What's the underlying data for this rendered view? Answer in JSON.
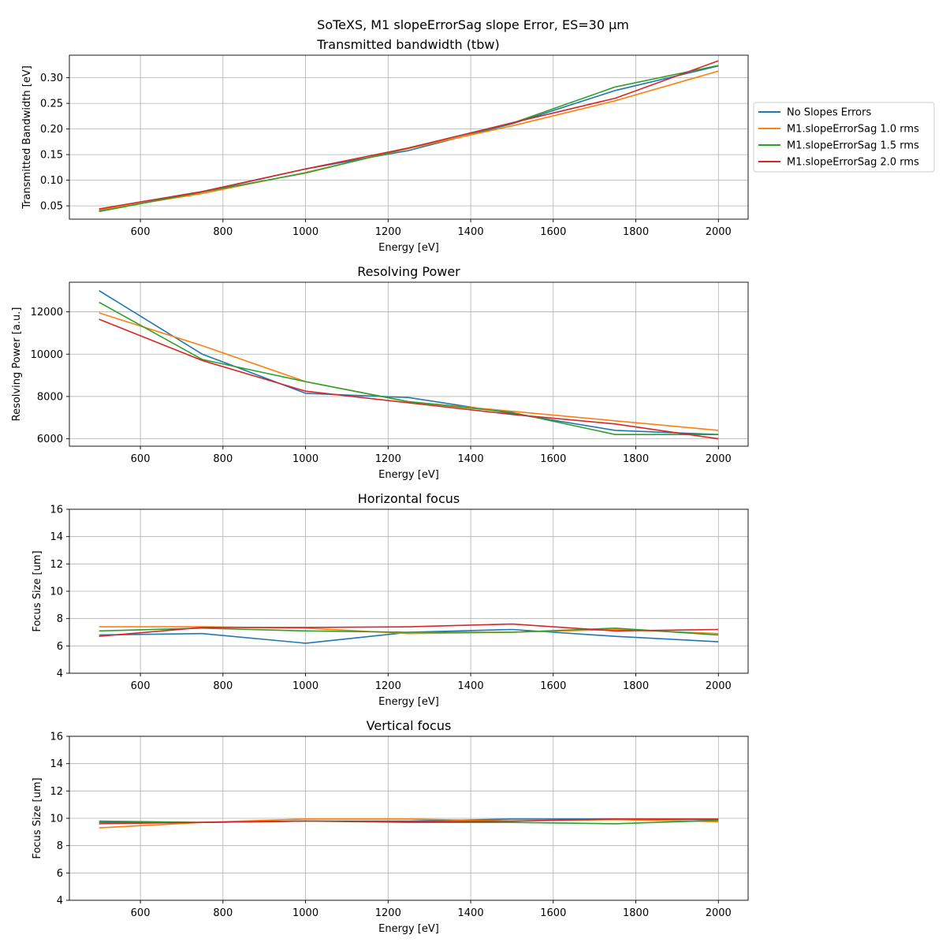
{
  "suptitle": "SoTeXS, M1 slopeErrorSag slope Error, ES=30 µm",
  "chart_data": [
    {
      "type": "line",
      "title": "Transmitted bandwidth (tbw)",
      "xlabel": "Energy [eV]",
      "ylabel": "Transmitted Bandwidth [eV]",
      "xlim": [
        428,
        2072
      ],
      "ylim": [
        0.024,
        0.344
      ],
      "xticks": [
        600,
        800,
        1000,
        1200,
        1400,
        1600,
        1800,
        2000
      ],
      "yticks": [
        0.05,
        0.1,
        0.15,
        0.2,
        0.25,
        0.3
      ],
      "ytick_labels": [
        "0.05",
        "0.10",
        "0.15",
        "0.20",
        "0.25",
        "0.30"
      ],
      "grid": true,
      "legend": "outside-right",
      "x": [
        500,
        750,
        1000,
        1250,
        1500,
        1750,
        2000
      ],
      "series": [
        {
          "name": "No Slopes Errors",
          "color": "#1f77b4",
          "values": [
            0.04,
            0.077,
            0.122,
            0.158,
            0.21,
            0.275,
            0.323
          ]
        },
        {
          "name": "M1.slopeErrorSag 1.0 rms",
          "color": "#ff7f0e",
          "values": [
            0.042,
            0.074,
            0.115,
            0.162,
            0.206,
            0.255,
            0.313
          ]
        },
        {
          "name": "M1.slopeErrorSag 1.5 rms",
          "color": "#2ca02c",
          "values": [
            0.039,
            0.077,
            0.114,
            0.163,
            0.211,
            0.282,
            0.324
          ]
        },
        {
          "name": "M1.slopeErrorSag 2.0 rms",
          "color": "#d62728",
          "values": [
            0.044,
            0.078,
            0.122,
            0.163,
            0.212,
            0.26,
            0.333
          ]
        }
      ]
    },
    {
      "type": "line",
      "title": "Resolving Power",
      "xlabel": "Energy [eV]",
      "ylabel": "Resolving Power [a.u.]",
      "xlim": [
        428,
        2072
      ],
      "ylim": [
        5650,
        13400
      ],
      "xticks": [
        600,
        800,
        1000,
        1200,
        1400,
        1600,
        1800,
        2000
      ],
      "yticks": [
        6000,
        8000,
        10000,
        12000
      ],
      "ytick_labels": [
        "6000",
        "8000",
        "10000",
        "12000"
      ],
      "grid": true,
      "x": [
        500,
        750,
        1000,
        1250,
        1500,
        1750,
        2000
      ],
      "series": [
        {
          "name": "No Slopes Errors",
          "color": "#1f77b4",
          "values": [
            13000,
            10000,
            8150,
            7950,
            7200,
            6400,
            6200
          ]
        },
        {
          "name": "M1.slopeErrorSag 1.0 rms",
          "color": "#ff7f0e",
          "values": [
            11950,
            10400,
            8700,
            7750,
            7300,
            6850,
            6400
          ]
        },
        {
          "name": "M1.slopeErrorSag 1.5 rms",
          "color": "#2ca02c",
          "values": [
            12450,
            9750,
            8700,
            7750,
            7250,
            6200,
            6200
          ]
        },
        {
          "name": "M1.slopeErrorSag 2.0 rms",
          "color": "#d62728",
          "values": [
            11650,
            9700,
            8250,
            7700,
            7150,
            6700,
            6000
          ]
        }
      ]
    },
    {
      "type": "line",
      "title": "Horizontal focus",
      "xlabel": "Energy [eV]",
      "ylabel": "Focus Size [um]",
      "xlim": [
        428,
        2072
      ],
      "ylim": [
        4,
        16
      ],
      "xticks": [
        600,
        800,
        1000,
        1200,
        1400,
        1600,
        1800,
        2000
      ],
      "yticks": [
        4,
        6,
        8,
        10,
        12,
        14,
        16
      ],
      "ytick_labels": [
        "4",
        "6",
        "8",
        "10",
        "12",
        "14",
        "16"
      ],
      "grid": true,
      "x": [
        500,
        750,
        1000,
        1250,
        1500,
        1750,
        2000
      ],
      "series": [
        {
          "name": "No Slopes Errors",
          "color": "#1f77b4",
          "values": [
            6.8,
            6.9,
            6.2,
            7.0,
            7.2,
            6.7,
            6.3
          ]
        },
        {
          "name": "M1.slopeErrorSag 1.0 rms",
          "color": "#ff7f0e",
          "values": [
            7.4,
            7.4,
            7.3,
            6.9,
            7.0,
            7.2,
            6.9
          ]
        },
        {
          "name": "M1.slopeErrorSag 1.5 rms",
          "color": "#2ca02c",
          "values": [
            7.1,
            7.3,
            7.1,
            7.0,
            7.0,
            7.3,
            6.8
          ]
        },
        {
          "name": "M1.slopeErrorSag 2.0 rms",
          "color": "#d62728",
          "values": [
            6.7,
            7.35,
            7.35,
            7.4,
            7.6,
            7.1,
            7.2
          ]
        }
      ]
    },
    {
      "type": "line",
      "title": "Vertical focus",
      "xlabel": "Energy [eV]",
      "ylabel": "Focus Size [um]",
      "xlim": [
        428,
        2072
      ],
      "ylim": [
        4,
        16
      ],
      "xticks": [
        600,
        800,
        1000,
        1200,
        1400,
        1600,
        1800,
        2000
      ],
      "yticks": [
        4,
        6,
        8,
        10,
        12,
        14,
        16
      ],
      "ytick_labels": [
        "4",
        "6",
        "8",
        "10",
        "12",
        "14",
        "16"
      ],
      "grid": true,
      "x": [
        500,
        750,
        1000,
        1250,
        1500,
        1750,
        2000
      ],
      "series": [
        {
          "name": "No Slopes Errors",
          "color": "#1f77b4",
          "values": [
            9.7,
            9.7,
            9.8,
            9.8,
            9.95,
            9.95,
            9.9
          ]
        },
        {
          "name": "M1.slopeErrorSag 1.0 rms",
          "color": "#ff7f0e",
          "values": [
            9.3,
            9.7,
            9.95,
            9.95,
            9.8,
            9.9,
            9.75
          ]
        },
        {
          "name": "M1.slopeErrorSag 1.5 rms",
          "color": "#2ca02c",
          "values": [
            9.8,
            9.7,
            9.8,
            9.7,
            9.7,
            9.6,
            9.85
          ]
        },
        {
          "name": "M1.slopeErrorSag 2.0 rms",
          "color": "#d62728",
          "values": [
            9.6,
            9.7,
            9.8,
            9.75,
            9.8,
            9.95,
            9.95
          ]
        }
      ]
    }
  ]
}
